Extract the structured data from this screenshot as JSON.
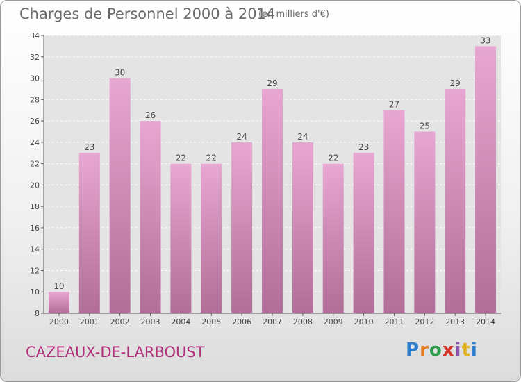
{
  "header": {
    "title": "Charges de Personnel 2000 à 2014",
    "subtitle": "(en milliers d'€)"
  },
  "footer": {
    "commune": "CAZEAUX-DE-LARBOUST",
    "logo_letters": [
      "P",
      "r",
      "o",
      "x",
      "i",
      "t",
      "i"
    ]
  },
  "colors": {
    "bar_top": "#e8a6d2",
    "bar_bottom": "#b06e98",
    "commune_text": "#b0307a"
  },
  "chart_data": {
    "type": "bar",
    "title": "Charges de Personnel 2000 à 2014",
    "subtitle": "(en milliers d'€)",
    "categories": [
      "2000",
      "2001",
      "2002",
      "2003",
      "2004",
      "2005",
      "2006",
      "2007",
      "2008",
      "2009",
      "2010",
      "2011",
      "2012",
      "2013",
      "2014"
    ],
    "values": [
      10,
      23,
      30,
      26,
      22,
      22,
      24,
      29,
      24,
      22,
      23,
      27,
      25,
      29,
      33
    ],
    "ylim": [
      8,
      34
    ],
    "yticks": [
      8,
      10,
      12,
      14,
      16,
      18,
      20,
      22,
      24,
      26,
      28,
      30,
      32,
      34
    ],
    "grid": true
  }
}
